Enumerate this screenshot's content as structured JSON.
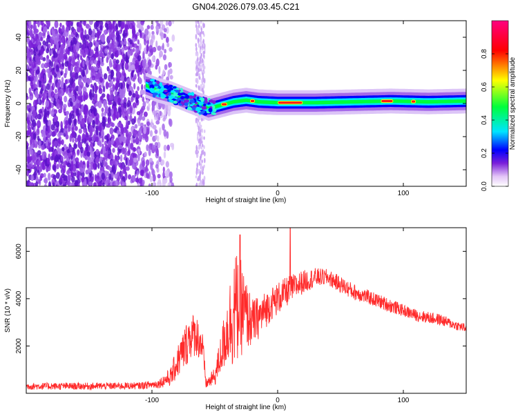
{
  "title": "GN04.2026.079.03.45.C21",
  "chart_data": [
    {
      "type": "heatmap",
      "title": "GN04.2026.079.03.45.C21",
      "xlabel": "Height of straight line (km)",
      "ylabel": "Frequency (Hz)",
      "xlim": [
        -200,
        150
      ],
      "ylim": [
        -50,
        50
      ],
      "x_ticks": [
        -100,
        0,
        100
      ],
      "y_ticks": [
        -40,
        -20,
        0,
        20,
        40
      ],
      "colorbar": {
        "label": "Normalized spectral amplitude",
        "range": [
          0,
          1
        ],
        "ticks": [
          0.0,
          0.2,
          0.4,
          0.6,
          0.8
        ],
        "colormap": [
          "#ffffff",
          "#e3c4f7",
          "#7a1fd9",
          "#0000ff",
          "#00e5ff",
          "#00ff3c",
          "#ffff00",
          "#ff0000",
          "#ff007f"
        ]
      },
      "ridge": {
        "x": [
          -105,
          -95,
          -85,
          -75,
          -65,
          -55,
          -45,
          -35,
          -25,
          -15,
          0,
          30,
          60,
          90,
          120,
          150
        ],
        "y": [
          11,
          8,
          6,
          3,
          0,
          -3,
          -1,
          1,
          2,
          1,
          0.5,
          0.5,
          1,
          1.5,
          1,
          1.5
        ],
        "peak_amplitude_x": [
          [
            -45,
            -40
          ],
          [
            -22,
            -18
          ],
          [
            0,
            20
          ],
          [
            82,
            92
          ],
          [
            106,
            110
          ]
        ]
      },
      "noise_region": {
        "x_from": -200,
        "x_to": -95,
        "extra_band_x": [
          -65,
          -58
        ]
      }
    },
    {
      "type": "line",
      "xlabel": "Height of straight line (km)",
      "ylabel": "SNR (10 * v/v)",
      "xlim": [
        -200,
        150
      ],
      "ylim": [
        0,
        7000
      ],
      "x_ticks": [
        -100,
        0,
        100
      ],
      "y_ticks": [
        2000,
        4000,
        6000
      ],
      "color": "#ff2a2a",
      "series": [
        {
          "name": "SNR",
          "x": [
            -200,
            -150,
            -110,
            -95,
            -85,
            -80,
            -75,
            -70,
            -65,
            -60,
            -57,
            -50,
            -45,
            -40,
            -35,
            -30,
            -25,
            -20,
            -15,
            -10,
            -5,
            0,
            10,
            20,
            30,
            40,
            50,
            60,
            70,
            80,
            90,
            100,
            110,
            120,
            130,
            140,
            150
          ],
          "mean": [
            300,
            300,
            320,
            400,
            700,
            1300,
            1800,
            2400,
            2500,
            2000,
            400,
            700,
            1700,
            2700,
            3500,
            3700,
            3300,
            3000,
            3200,
            3500,
            3800,
            4000,
            4400,
            4700,
            4900,
            4900,
            4600,
            4300,
            4100,
            3900,
            3700,
            3500,
            3300,
            3200,
            3100,
            2900,
            2750
          ],
          "amp": [
            150,
            150,
            150,
            180,
            400,
            700,
            900,
            1000,
            900,
            800,
            200,
            400,
            900,
            1500,
            2500,
            2200,
            1500,
            1000,
            900,
            800,
            700,
            700,
            600,
            500,
            400,
            350,
            350,
            350,
            300,
            300,
            300,
            250,
            250,
            250,
            250,
            200,
            200
          ]
        }
      ],
      "peaks": [
        {
          "x": -30,
          "y": 6700
        },
        {
          "x": 10,
          "y": 7000
        }
      ]
    }
  ]
}
